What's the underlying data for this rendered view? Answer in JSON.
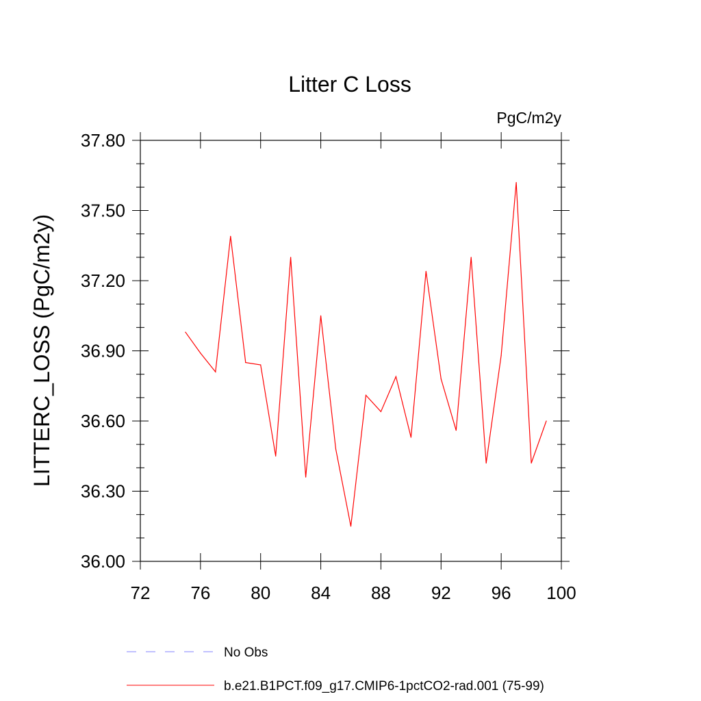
{
  "chart_data": {
    "type": "line",
    "title": "Litter C Loss",
    "units": "PgC/m2y",
    "ylabel": "LITTERC_LOSS  (PgC/m2y)",
    "xlabel": "",
    "xlim": [
      72,
      100
    ],
    "ylim": [
      36.0,
      37.8
    ],
    "x_ticks": [
      "72",
      "76",
      "80",
      "84",
      "88",
      "92",
      "96",
      "100"
    ],
    "y_ticks": [
      "36.00",
      "36.30",
      "36.60",
      "36.90",
      "37.20",
      "37.50",
      "37.80"
    ],
    "x_tick_values": [
      72,
      76,
      80,
      84,
      88,
      92,
      96,
      100
    ],
    "y_tick_values": [
      36.0,
      36.3,
      36.6,
      36.9,
      37.2,
      37.5,
      37.8
    ],
    "series": [
      {
        "name": "b.e21.B1PCT.f09_g17.CMIP6-1pctCO2-rad.001 (75-99)",
        "color": "#ff0000",
        "x": [
          75,
          76,
          77,
          78,
          79,
          80,
          81,
          82,
          83,
          84,
          85,
          86,
          87,
          88,
          89,
          90,
          91,
          92,
          93,
          94,
          95,
          96,
          97,
          98,
          99
        ],
        "values": [
          36.98,
          36.89,
          36.81,
          37.39,
          36.85,
          36.84,
          36.45,
          37.3,
          36.36,
          37.05,
          36.48,
          36.15,
          36.71,
          36.64,
          36.79,
          36.53,
          37.24,
          36.78,
          36.56,
          37.3,
          36.42,
          36.88,
          37.62,
          36.42,
          36.6
        ]
      }
    ],
    "legend": [
      {
        "label": "No Obs",
        "style": "dashed",
        "color": "#8080ff"
      },
      {
        "label": "b.e21.B1PCT.f09_g17.CMIP6-1pctCO2-rad.001 (75-99)",
        "style": "solid",
        "color": "#ff0000"
      }
    ],
    "legend_placement": "bottom",
    "grid": false
  }
}
